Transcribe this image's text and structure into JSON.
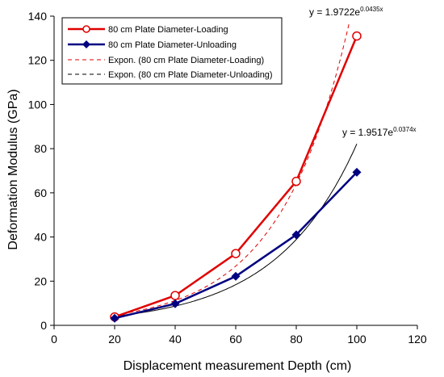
{
  "chart_data": {
    "type": "line",
    "xlabel": "Displacement measurement Depth (cm)",
    "ylabel": "Deformation Modulus (GPa)",
    "xlim": [
      0,
      120
    ],
    "ylim": [
      0,
      140
    ],
    "x_ticks": [
      0,
      20,
      40,
      60,
      80,
      100,
      120
    ],
    "y_ticks": [
      0,
      20,
      40,
      60,
      80,
      100,
      120,
      140
    ],
    "grid": false,
    "legend_position": "top-left",
    "series": [
      {
        "name": "80 cm Plate Diameter-Loading",
        "color": "#e00000",
        "marker": "open-circle",
        "x": [
          20,
          40,
          60,
          80,
          100
        ],
        "y": [
          3.8,
          13.5,
          32.5,
          65.2,
          131.0
        ]
      },
      {
        "name": "80 cm Plate Diameter-Unloading",
        "color": "#000080",
        "marker": "filled-diamond",
        "x": [
          20,
          40,
          60,
          80,
          100
        ],
        "y": [
          3.2,
          9.8,
          22.2,
          41.0,
          69.3
        ]
      }
    ],
    "trendlines": [
      {
        "name": "Expon. (80 cm Plate Diameter-Loading)",
        "color": "#e00000",
        "style": "dashed",
        "a": 1.9722,
        "b": 0.0435,
        "equation_base": "y = 1.9722e",
        "equation_exp": "0.0435x"
      },
      {
        "name": "Expon. (80 cm Plate Diameter-Unloading)",
        "color": "#000000",
        "style": "dashed",
        "a": 1.9517,
        "b": 0.0374,
        "equation_base": "y = 1.9517e",
        "equation_exp": "0.0374x"
      }
    ]
  }
}
